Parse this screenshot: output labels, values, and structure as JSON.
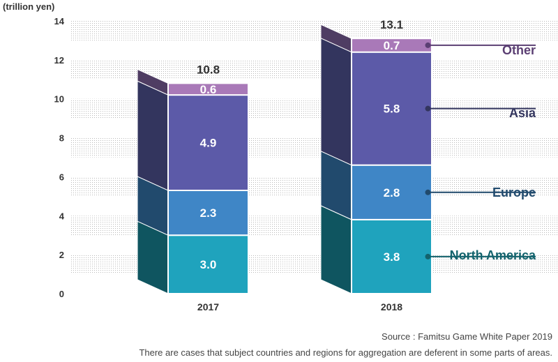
{
  "chart_data": {
    "type": "bar",
    "stacked": true,
    "ylabel": "(trillion yen)",
    "ylim": [
      0,
      14
    ],
    "yticks": [
      0,
      2,
      4,
      6,
      8,
      10,
      12,
      14
    ],
    "categories": [
      "2017",
      "2018"
    ],
    "totals": [
      "10.8",
      "13.1"
    ],
    "series": [
      {
        "name": "North America",
        "values": [
          3.0,
          3.8
        ],
        "labels": [
          "3.0",
          "3.8"
        ],
        "color": "#1fa3bd",
        "side_color": "#0f5560",
        "legend_color": "#13636d"
      },
      {
        "name": "Europe",
        "values": [
          2.3,
          2.8
        ],
        "labels": [
          "2.3",
          "2.8"
        ],
        "color": "#3f86c6",
        "side_color": "#214a6d",
        "legend_color": "#214a6d"
      },
      {
        "name": "Asia",
        "values": [
          4.9,
          5.8
        ],
        "labels": [
          "4.9",
          "5.8"
        ],
        "color": "#5c5aa8",
        "side_color": "#33355e",
        "legend_color": "#33355e"
      },
      {
        "name": "Other",
        "values": [
          0.6,
          0.7
        ],
        "labels": [
          "0.6",
          "0.7"
        ],
        "color": "#a979b8",
        "side_color": "#4f3d63",
        "legend_color": "#5b3f73"
      }
    ],
    "grid": "dotted bands",
    "legend": "right, leader lines"
  },
  "footer": {
    "source": "Source : Famitsu Game White Paper 2019",
    "note": "There are cases that subject countries and regions for aggregation are deferent in some parts of areas."
  }
}
